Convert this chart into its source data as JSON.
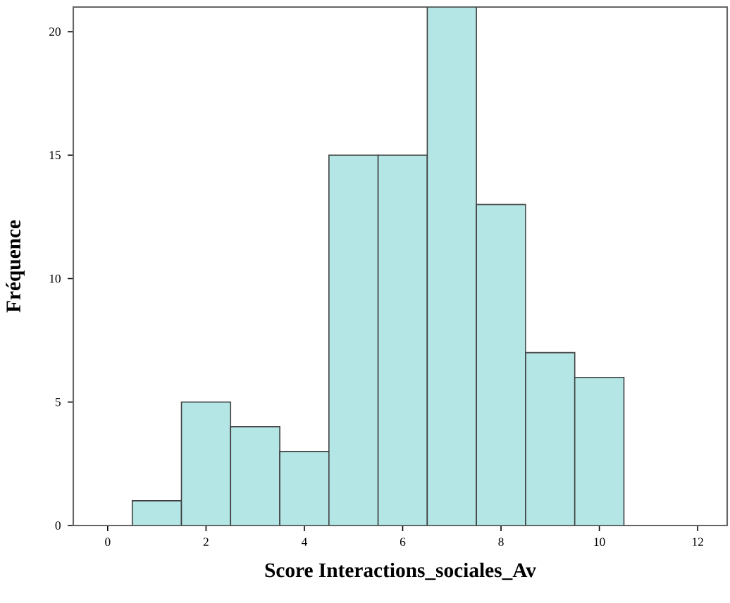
{
  "chart_data": {
    "type": "histogram",
    "xlabel": "Score Interactions_sociales_Av",
    "ylabel": "Fréquence",
    "bins": [
      0.5,
      1.5,
      2.5,
      3.5,
      4.5,
      5.5,
      6.5,
      7.5,
      8.5,
      9.5,
      10.5
    ],
    "values": [
      1,
      5,
      4,
      3,
      15,
      15,
      21,
      13,
      7,
      6
    ],
    "color": "#b4e6e6",
    "xlim": [
      -0.7,
      12.6
    ],
    "ylim": [
      0,
      21
    ],
    "xticks": [
      0,
      2,
      4,
      6,
      8,
      10,
      12
    ],
    "yticks": [
      0,
      5,
      10,
      15,
      20
    ],
    "grid": false
  }
}
